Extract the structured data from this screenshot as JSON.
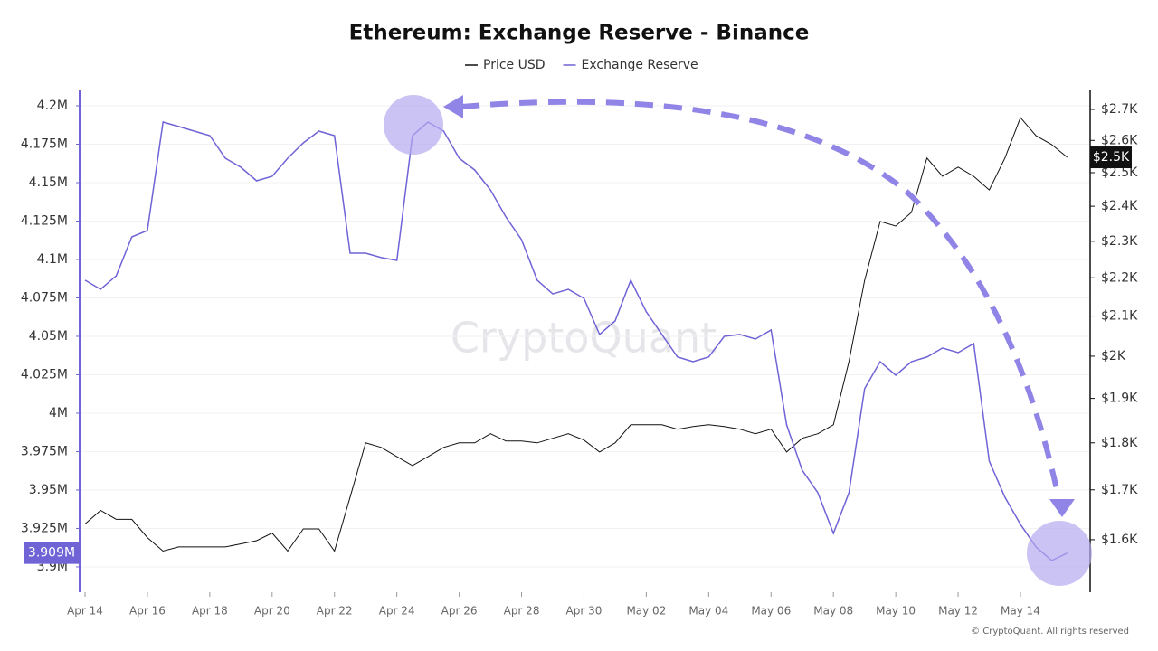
{
  "chart_data": {
    "type": "line",
    "title": "Ethereum: Exchange Reserve - Binance",
    "watermark": "CryptoQuant",
    "credit": "© CryptoQuant. All rights reserved",
    "grid": true,
    "y2log": true,
    "categories": [
      "Apr 14",
      null,
      null,
      null,
      "Apr 16",
      null,
      null,
      null,
      "Apr 18",
      null,
      null,
      null,
      "Apr 20",
      null,
      null,
      null,
      "Apr 22",
      null,
      null,
      null,
      "Apr 24",
      null,
      null,
      null,
      "Apr 26",
      null,
      null,
      null,
      "Apr 28",
      null,
      null,
      null,
      "Apr 30",
      null,
      null,
      null,
      "May 02",
      null,
      null,
      null,
      "May 04",
      null,
      null,
      null,
      "May 06",
      null,
      null,
      null,
      "May 08",
      null,
      null,
      null,
      "May 10",
      null,
      null,
      null,
      "May 12",
      null,
      null,
      null,
      "May 14",
      null,
      null,
      null
    ],
    "ylim": [
      3883500,
      4210000
    ],
    "yticks": [
      {
        "value": 3900000,
        "label": "3.9M"
      },
      {
        "value": 3925000,
        "label": "3.925M"
      },
      {
        "value": 3950000,
        "label": "3.95M"
      },
      {
        "value": 3975000,
        "label": "3.975M"
      },
      {
        "value": 4000000,
        "label": "4M"
      },
      {
        "value": 4025000,
        "label": "4.025M"
      },
      {
        "value": 4050000,
        "label": "4.05M"
      },
      {
        "value": 4075000,
        "label": "4.075M"
      },
      {
        "value": 4100000,
        "label": "4.1M"
      },
      {
        "value": 4125000,
        "label": "4.125M"
      },
      {
        "value": 4150000,
        "label": "4.15M"
      },
      {
        "value": 4175000,
        "label": "4.175M"
      },
      {
        "value": 4200000,
        "label": "4.2M"
      }
    ],
    "y2lim": [
      1501,
      2763
    ],
    "y2ticks": [
      {
        "value": 1600,
        "label": "$1.6K"
      },
      {
        "value": 1700,
        "label": "$1.7K"
      },
      {
        "value": 1800,
        "label": "$1.8K"
      },
      {
        "value": 1900,
        "label": "$1.9K"
      },
      {
        "value": 2000,
        "label": "$2K"
      },
      {
        "value": 2100,
        "label": "$2.1K"
      },
      {
        "value": 2200,
        "label": "$2.2K"
      },
      {
        "value": 2300,
        "label": "$2.3K"
      },
      {
        "value": 2400,
        "label": "$2.4K"
      },
      {
        "value": 2500,
        "label": "$2.5K"
      },
      {
        "value": 2600,
        "label": "$2.6K"
      },
      {
        "value": 2700,
        "label": "$2.7K"
      }
    ],
    "series": [
      {
        "name": "Price USD",
        "color": "#111111",
        "axis": "y2",
        "latest_label": "$2.5K",
        "values": [
          1631,
          1658,
          1640,
          1640,
          1604,
          1578,
          1586,
          1586,
          1586,
          1586,
          1592,
          1598,
          1613,
          1578,
          1621,
          1621,
          1578,
          1685,
          1800,
          1790,
          1770,
          1751,
          1770,
          1790,
          1800,
          1800,
          1820,
          1804,
          1804,
          1800,
          1810,
          1820,
          1806,
          1780,
          1800,
          1840,
          1840,
          1840,
          1830,
          1836,
          1840,
          1836,
          1830,
          1820,
          1830,
          1780,
          1810,
          1820,
          1840,
          1987,
          2193,
          2356,
          2343,
          2382,
          2545,
          2489,
          2517,
          2489,
          2448,
          2545,
          2673,
          2615,
          2587,
          2547
        ]
      },
      {
        "name": "Exchange Reserve",
        "color": "#6f63d6",
        "latest_label": "3.909M",
        "values": [
          4086500,
          4080600,
          4089400,
          4114700,
          4118800,
          4189400,
          4186500,
          4183500,
          4180600,
          4165900,
          4160000,
          4151200,
          4154100,
          4165900,
          4175900,
          4183500,
          4180600,
          4104100,
          4104100,
          4101200,
          4099400,
          4180600,
          4189400,
          4183500,
          4165900,
          4158200,
          4145300,
          4127600,
          4112900,
          4086500,
          4077600,
          4080600,
          4074700,
          4051200,
          4060000,
          4086500,
          4065900,
          4051200,
          4036500,
          4033500,
          4036500,
          4050000,
          4051200,
          4048200,
          4054100,
          3992400,
          3962900,
          3948200,
          3921800,
          3948200,
          4015900,
          4033500,
          4024700,
          4033500,
          4036500,
          4042400,
          4039400,
          4045300,
          3968800,
          3945300,
          3927600,
          3912900,
          3904100,
          3909000
        ]
      }
    ]
  }
}
